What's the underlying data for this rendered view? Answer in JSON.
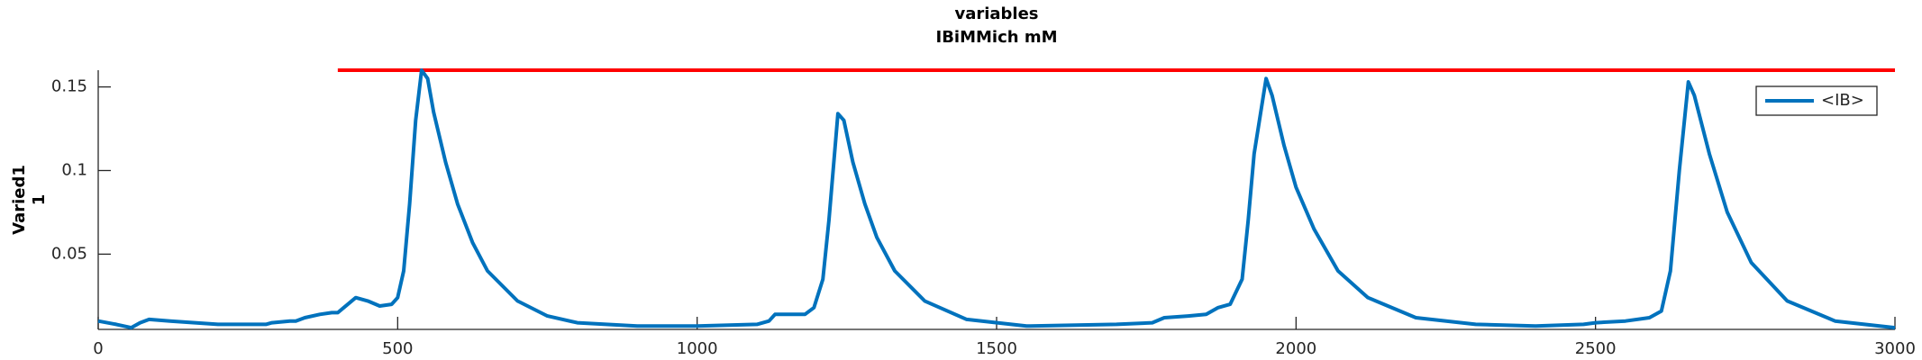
{
  "chart_data": {
    "type": "line",
    "title": [
      "variables",
      "IBiMMich mM"
    ],
    "ylabel": [
      "Varied1",
      "1"
    ],
    "xlim": [
      0,
      3000
    ],
    "ylim": [
      0.005,
      0.16
    ],
    "xticks": [
      0,
      500,
      1000,
      1500,
      2000,
      2500,
      3000
    ],
    "yticks": [
      0.05,
      0.1,
      0.15
    ],
    "legend": "northeast",
    "hline": {
      "y": 0.16,
      "xmin": 400,
      "xmax": 3000,
      "color": "#ff0000"
    },
    "series": [
      {
        "name": "<IB>",
        "color": "#0072bd",
        "x": [
          0,
          30,
          55,
          70,
          85,
          120,
          200,
          280,
          290,
          320,
          330,
          345,
          370,
          390,
          400,
          410,
          430,
          450,
          470,
          490,
          500,
          510,
          520,
          530,
          540,
          550,
          560,
          580,
          600,
          625,
          650,
          700,
          750,
          800,
          900,
          1000,
          1100,
          1120,
          1130,
          1150,
          1180,
          1195,
          1210,
          1220,
          1235,
          1245,
          1260,
          1280,
          1300,
          1330,
          1380,
          1450,
          1550,
          1700,
          1760,
          1780,
          1820,
          1850,
          1870,
          1890,
          1910,
          1920,
          1930,
          1950,
          1960,
          1980,
          2000,
          2030,
          2070,
          2120,
          2200,
          2300,
          2400,
          2480,
          2500,
          2550,
          2590,
          2610,
          2625,
          2640,
          2655,
          2665,
          2690,
          2720,
          2760,
          2820,
          2900,
          3000
        ],
        "values": [
          0.01,
          0.008,
          0.006,
          0.009,
          0.011,
          0.01,
          0.008,
          0.008,
          0.009,
          0.01,
          0.01,
          0.012,
          0.014,
          0.015,
          0.015,
          0.018,
          0.024,
          0.022,
          0.019,
          0.02,
          0.024,
          0.04,
          0.08,
          0.13,
          0.16,
          0.155,
          0.135,
          0.105,
          0.08,
          0.057,
          0.04,
          0.022,
          0.013,
          0.009,
          0.007,
          0.007,
          0.008,
          0.01,
          0.014,
          0.014,
          0.014,
          0.018,
          0.035,
          0.07,
          0.134,
          0.13,
          0.105,
          0.08,
          0.06,
          0.04,
          0.022,
          0.011,
          0.007,
          0.008,
          0.009,
          0.012,
          0.013,
          0.014,
          0.018,
          0.02,
          0.035,
          0.07,
          0.11,
          0.155,
          0.145,
          0.115,
          0.09,
          0.065,
          0.04,
          0.024,
          0.012,
          0.008,
          0.007,
          0.008,
          0.009,
          0.01,
          0.012,
          0.016,
          0.04,
          0.1,
          0.153,
          0.145,
          0.11,
          0.075,
          0.045,
          0.022,
          0.01,
          0.006
        ]
      }
    ]
  }
}
